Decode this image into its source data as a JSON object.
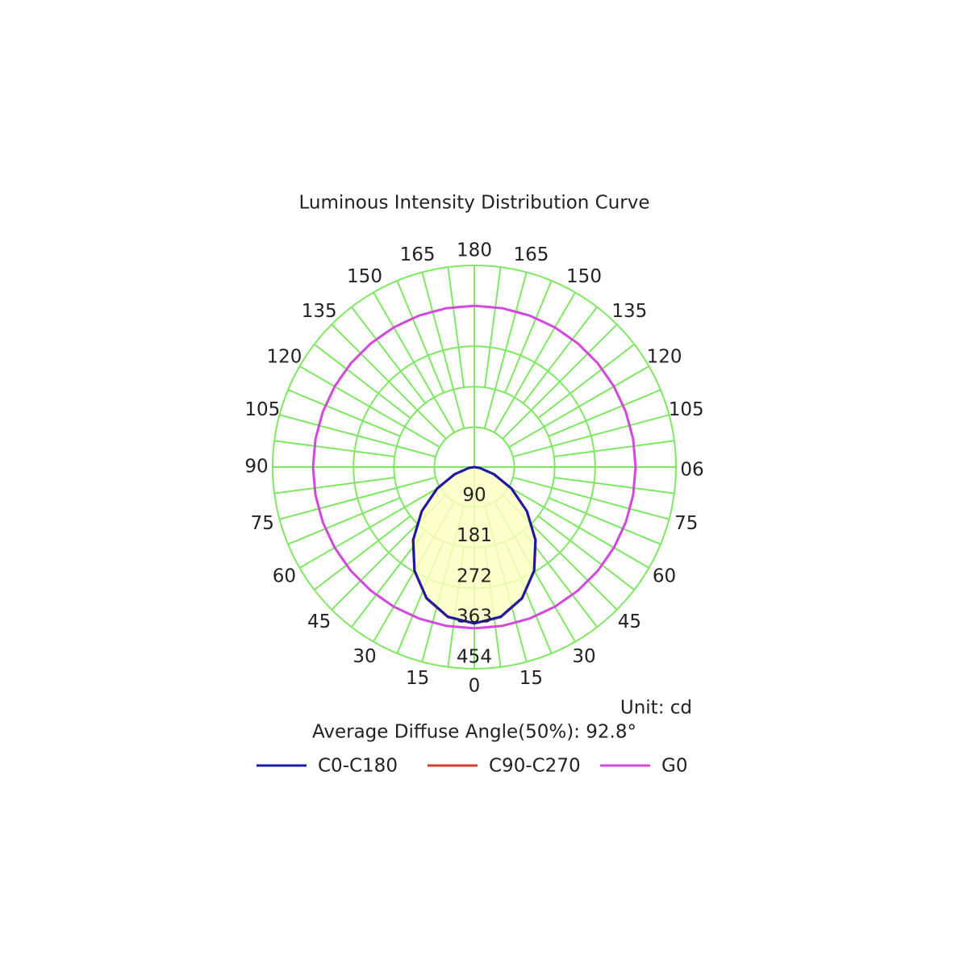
{
  "chart_data": {
    "type": "polar",
    "title": "Luminous Intensity Distribution Curve",
    "unit": "Unit: cd",
    "note": "Average Diffuse Angle(50%): 92.8°",
    "x": [
      -180,
      -170,
      -160,
      -150,
      -140,
      -130,
      -120,
      -110,
      -100,
      -90,
      -80,
      -70,
      -60,
      -50,
      -40,
      -30,
      -20,
      -10,
      0,
      10,
      20,
      30,
      40,
      50,
      60,
      70,
      80,
      90,
      100,
      110,
      120,
      130,
      140,
      150,
      160,
      170,
      180
    ],
    "series": [
      {
        "name": "C0-C180",
        "color": "#1a1aa8",
        "values": [
          0,
          0,
          0,
          0,
          0,
          0,
          0,
          0,
          0,
          0,
          13,
          47,
          96,
          154,
          214,
          269,
          314,
          342,
          352,
          342,
          314,
          269,
          214,
          154,
          96,
          47,
          13,
          0,
          0,
          0,
          0,
          0,
          0,
          0,
          0,
          0,
          0
        ]
      },
      {
        "name": "C90-C270",
        "color": "#d23c28",
        "values": [
          0,
          0,
          0,
          0,
          0,
          0,
          0,
          0,
          0,
          0,
          13,
          48,
          97,
          155,
          215,
          270,
          315,
          343,
          352,
          343,
          315,
          270,
          215,
          155,
          97,
          48,
          13,
          0,
          0,
          0,
          0,
          0,
          0,
          0,
          0,
          0,
          0
        ]
      },
      {
        "name": "G0",
        "color": "#d448e0",
        "values": [
          363,
          363,
          363,
          363,
          363,
          363,
          363,
          363,
          363,
          363,
          363,
          363,
          363,
          363,
          363,
          363,
          363,
          363,
          363,
          363,
          363,
          363,
          363,
          363,
          363,
          363,
          363,
          363,
          363,
          363,
          363,
          363,
          363,
          363,
          363,
          363,
          363
        ]
      }
    ],
    "rlim": [
      0,
      454
    ],
    "rticks": [
      90,
      181,
      272,
      363,
      454
    ],
    "angle_ticks": [
      0,
      15,
      30,
      45,
      60,
      75,
      90,
      105,
      120,
      135,
      150,
      165,
      180
    ],
    "grid_color": "#7de860",
    "fill_color": "#ffffc0"
  }
}
